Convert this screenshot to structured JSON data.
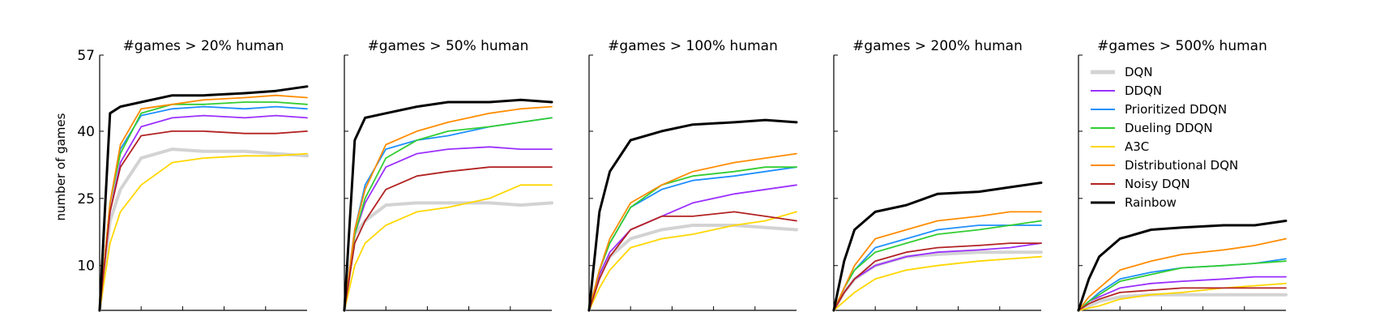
{
  "chart_data": {
    "type": "line",
    "ylabel": "number of games",
    "ylim": [
      0,
      57
    ],
    "yticks": [
      10,
      25,
      40,
      57
    ],
    "x_steps": 5,
    "legend_location": "top-left of last panel",
    "series_style": [
      {
        "name": "DQN",
        "color": "#d3d3d3"
      },
      {
        "name": "DDQN",
        "color": "#9b30ff"
      },
      {
        "name": "Prioritized DDQN",
        "color": "#1e90ff"
      },
      {
        "name": "Dueling DDQN",
        "color": "#32cd32"
      },
      {
        "name": "A3C",
        "color": "#ffd700"
      },
      {
        "name": "Distributional DQN",
        "color": "#ff8c00"
      },
      {
        "name": "Noisy DQN",
        "color": "#b22222"
      },
      {
        "name": "Rainbow",
        "color": "#000000"
      }
    ],
    "x": [
      0,
      0.05,
      0.1,
      0.2,
      0.35,
      0.5,
      0.7,
      0.85,
      1.0
    ],
    "panels": [
      {
        "title": "#games > 20% human",
        "series": [
          {
            "name": "DQN",
            "values": [
              0,
              20,
              27,
              34,
              36,
              35.5,
              35.5,
              35,
              34.5
            ]
          },
          {
            "name": "DDQN",
            "values": [
              0,
              22,
              33,
              41,
              43,
              43.5,
              43,
              43.5,
              43
            ]
          },
          {
            "name": "Prioritized DDQN",
            "values": [
              0,
              24,
              36,
              43.5,
              45,
              45.5,
              45,
              45.5,
              45
            ]
          },
          {
            "name": "Dueling DDQN",
            "values": [
              0,
              24,
              35,
              44,
              46,
              46,
              46.5,
              46.5,
              46
            ]
          },
          {
            "name": "A3C",
            "values": [
              0,
              15,
              22,
              28,
              33,
              34,
              34.5,
              34.5,
              35
            ]
          },
          {
            "name": "Distributional DQN",
            "values": [
              0,
              24,
              37,
              45,
              46,
              47,
              47.5,
              48,
              47.5
            ]
          },
          {
            "name": "Noisy DQN",
            "values": [
              0,
              22,
              32,
              39,
              40,
              40,
              39.5,
              39.5,
              40
            ]
          },
          {
            "name": "Rainbow",
            "values": [
              0,
              44,
              45.5,
              46.5,
              48,
              48,
              48.5,
              49,
              50
            ]
          }
        ]
      },
      {
        "title": "#games > 50% human",
        "series": [
          {
            "name": "DQN",
            "values": [
              0,
              17,
              20,
              23.5,
              24,
              24,
              24,
              23.5,
              24
            ]
          },
          {
            "name": "DDQN",
            "values": [
              0,
              17,
              24,
              32,
              35,
              36,
              36.5,
              36,
              36
            ]
          },
          {
            "name": "Prioritized DDQN",
            "values": [
              0,
              18,
              28,
              36,
              38,
              39,
              41,
              42,
              43
            ]
          },
          {
            "name": "Dueling DDQN",
            "values": [
              0,
              17,
              25,
              34,
              38,
              40,
              41,
              42,
              43
            ]
          },
          {
            "name": "A3C",
            "values": [
              0,
              10,
              15,
              19,
              22,
              23,
              25,
              28,
              28
            ]
          },
          {
            "name": "Distributional DQN",
            "values": [
              0,
              18,
              27,
              37,
              40,
              42,
              44,
              45,
              45.5
            ]
          },
          {
            "name": "Noisy DQN",
            "values": [
              0,
              15,
              20,
              27,
              30,
              31,
              32,
              32,
              32
            ]
          },
          {
            "name": "Rainbow",
            "values": [
              0,
              38,
              43,
              44,
              45.5,
              46.5,
              46.5,
              47,
              46.5
            ]
          }
        ]
      },
      {
        "title": "#games > 100% human",
        "series": [
          {
            "name": "DQN",
            "values": [
              0,
              8,
              12,
              16,
              18,
              19,
              19,
              18.5,
              18
            ]
          },
          {
            "name": "DDQN",
            "values": [
              0,
              8,
              13,
              18,
              21,
              24,
              26,
              27,
              28
            ]
          },
          {
            "name": "Prioritized DDQN",
            "values": [
              0,
              9,
              15,
              23,
              27,
              29,
              30,
              31,
              32
            ]
          },
          {
            "name": "Dueling DDQN",
            "values": [
              0,
              9,
              15,
              23,
              28,
              30,
              31,
              32,
              32
            ]
          },
          {
            "name": "A3C",
            "values": [
              0,
              5,
              9,
              14,
              16,
              17,
              19,
              20,
              22
            ]
          },
          {
            "name": "Distributional DQN",
            "values": [
              0,
              9,
              16,
              24,
              28,
              31,
              33,
              34,
              35
            ]
          },
          {
            "name": "Noisy DQN",
            "values": [
              0,
              7,
              12,
              18,
              21,
              21,
              22,
              21,
              20
            ]
          },
          {
            "name": "Rainbow",
            "values": [
              0,
              22,
              31,
              38,
              40,
              41.5,
              42,
              42.5,
              42
            ]
          }
        ]
      },
      {
        "title": "#games > 200% human",
        "series": [
          {
            "name": "DQN",
            "values": [
              0,
              4,
              7,
              10,
              12,
              12.5,
              13,
              13,
              13
            ]
          },
          {
            "name": "DDQN",
            "values": [
              0,
              4,
              7,
              10,
              12,
              13,
              13.5,
              14,
              15
            ]
          },
          {
            "name": "Prioritized DDQN",
            "values": [
              0,
              5,
              9,
              14,
              16,
              18,
              19,
              19,
              19
            ]
          },
          {
            "name": "Dueling DDQN",
            "values": [
              0,
              5,
              9,
              13,
              15,
              17,
              18,
              19,
              20
            ]
          },
          {
            "name": "A3C",
            "values": [
              0,
              2,
              4,
              7,
              9,
              10,
              11,
              11.5,
              12
            ]
          },
          {
            "name": "Distributional DQN",
            "values": [
              0,
              5,
              10,
              16,
              18,
              20,
              21,
              22,
              22
            ]
          },
          {
            "name": "Noisy DQN",
            "values": [
              0,
              4,
              7,
              11,
              13,
              14,
              14.5,
              15,
              15
            ]
          },
          {
            "name": "Rainbow",
            "values": [
              0,
              11,
              18,
              22,
              23.5,
              26,
              26.5,
              27.5,
              28.5
            ]
          }
        ]
      },
      {
        "title": "#games > 500% human",
        "series": [
          {
            "name": "DQN",
            "values": [
              0,
              1,
              2,
              3,
              3.5,
              3.5,
              3.5,
              3.5,
              3.5
            ]
          },
          {
            "name": "DDQN",
            "values": [
              0,
              2,
              3,
              5,
              6,
              6.5,
              7,
              7.5,
              7.5
            ]
          },
          {
            "name": "Prioritized DDQN",
            "values": [
              0,
              2,
              4,
              7,
              8.5,
              9.5,
              10,
              10.5,
              11.5
            ]
          },
          {
            "name": "Dueling DDQN",
            "values": [
              0,
              2,
              3.5,
              6.5,
              8,
              9.5,
              10,
              10.5,
              11
            ]
          },
          {
            "name": "A3C",
            "values": [
              0,
              0.5,
              1,
              2.5,
              3.5,
              4,
              5,
              5.5,
              6
            ]
          },
          {
            "name": "Distributional DQN",
            "values": [
              0,
              3,
              5,
              9,
              11,
              12.5,
              13.5,
              14.5,
              16
            ]
          },
          {
            "name": "Noisy DQN",
            "values": [
              0,
              1.5,
              2.5,
              4,
              4.5,
              5,
              5,
              5,
              5
            ]
          },
          {
            "name": "Rainbow",
            "values": [
              0,
              7,
              12,
              16,
              18,
              18.5,
              19,
              19,
              20
            ]
          }
        ]
      }
    ]
  }
}
